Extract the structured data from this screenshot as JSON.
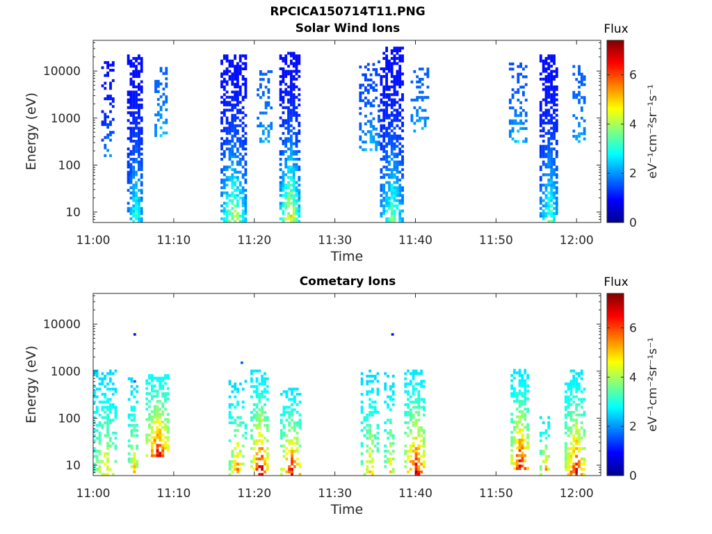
{
  "figure": {
    "title": "RPCICA150714T11.PNG"
  },
  "colorscale": [
    "#00008f",
    "#0000ff",
    "#0080ff",
    "#00ffff",
    "#80ff80",
    "#ffff00",
    "#ff8000",
    "#ff0000",
    "#800000"
  ],
  "chart_data": [
    {
      "type": "heatmap",
      "title": "Solar Wind Ions",
      "xlabel": "Time",
      "ylabel": "Energy (eV)",
      "x_ticks": [
        "11:00",
        "11:10",
        "11:20",
        "11:30",
        "11:40",
        "11:50",
        "12:00"
      ],
      "x_range_minutes": [
        0,
        63
      ],
      "y_scale": "log",
      "y_ticks": [
        "10",
        "100",
        "1000",
        "10000"
      ],
      "y_range": [
        6,
        45000
      ],
      "colorbar": {
        "label": "Flux",
        "unit": "eV⁻¹cm⁻²sr⁻¹s⁻¹",
        "range": [
          0,
          7.4
        ],
        "ticks": [
          "0",
          "2",
          "4",
          "6"
        ]
      },
      "bursts": [
        {
          "t0": 1.0,
          "t1": 2.6,
          "emin": 150,
          "emax": 15000,
          "density": 0.35,
          "vmax": 2.3,
          "vmin": 1.0
        },
        {
          "t0": 4.2,
          "t1": 6.1,
          "emin": 6,
          "emax": 20000,
          "density": 0.65,
          "vmax": 3.5,
          "vmin": 1.0
        },
        {
          "t0": 7.6,
          "t1": 9.2,
          "emin": 400,
          "emax": 13000,
          "density": 0.4,
          "vmax": 2.6,
          "vmin": 1.6
        },
        {
          "t0": 15.8,
          "t1": 18.8,
          "emin": 6,
          "emax": 22000,
          "density": 0.6,
          "vmax": 4.6,
          "vmin": 1.0
        },
        {
          "t0": 20.3,
          "t1": 22.2,
          "emin": 300,
          "emax": 10000,
          "density": 0.3,
          "vmax": 2.4,
          "vmin": 1.6
        },
        {
          "t0": 23.1,
          "t1": 25.5,
          "emin": 6,
          "emax": 23000,
          "density": 0.62,
          "vmax": 5.4,
          "vmin": 1.0
        },
        {
          "t0": 33.0,
          "t1": 35.6,
          "emin": 200,
          "emax": 16000,
          "density": 0.35,
          "vmax": 2.6,
          "vmin": 1.4
        },
        {
          "t0": 35.6,
          "t1": 38.3,
          "emin": 6,
          "emax": 30000,
          "density": 0.62,
          "vmax": 4.0,
          "vmin": 1.0
        },
        {
          "t0": 39.4,
          "t1": 41.4,
          "emin": 500,
          "emax": 11000,
          "density": 0.35,
          "vmax": 2.5,
          "vmin": 1.6
        },
        {
          "t0": 51.6,
          "t1": 53.6,
          "emin": 300,
          "emax": 15000,
          "density": 0.35,
          "vmax": 2.7,
          "vmin": 1.5
        },
        {
          "t0": 55.4,
          "t1": 57.6,
          "emin": 6,
          "emax": 22000,
          "density": 0.62,
          "vmax": 3.8,
          "vmin": 1.0
        },
        {
          "t0": 59.5,
          "t1": 61.0,
          "emin": 300,
          "emax": 12000,
          "density": 0.35,
          "vmax": 2.4,
          "vmin": 1.6
        }
      ]
    },
    {
      "type": "heatmap",
      "title": "Cometary Ions",
      "xlabel": "Time",
      "ylabel": "Energy (eV)",
      "x_ticks": [
        "11:00",
        "11:10",
        "11:20",
        "11:30",
        "11:40",
        "11:50",
        "12:00"
      ],
      "x_range_minutes": [
        0,
        63
      ],
      "y_scale": "log",
      "y_ticks": [
        "10",
        "100",
        "1000",
        "10000"
      ],
      "y_range": [
        6,
        45000
      ],
      "colorbar": {
        "label": "Flux",
        "unit": "eV⁻¹cm⁻²sr⁻¹s⁻¹",
        "range": [
          0,
          7.4
        ],
        "ticks": [
          "0",
          "2",
          "4",
          "6"
        ]
      },
      "bursts": [
        {
          "t0": 0.0,
          "t1": 2.8,
          "emin": 6,
          "emax": 1000,
          "density": 0.35,
          "vmax": 5.0,
          "vmin": 2.5
        },
        {
          "t0": 4.3,
          "t1": 5.5,
          "emin": 6,
          "emax": 700,
          "density": 0.3,
          "vmax": 5.5,
          "vmin": 2.5
        },
        {
          "t0": 6.5,
          "t1": 9.3,
          "emin": 15,
          "emax": 800,
          "density": 0.55,
          "vmax": 7.2,
          "vmin": 2.8
        },
        {
          "t0": 16.8,
          "t1": 18.8,
          "emin": 6,
          "emax": 600,
          "density": 0.35,
          "vmax": 6.0,
          "vmin": 2.5
        },
        {
          "t0": 19.5,
          "t1": 21.8,
          "emin": 6,
          "emax": 1000,
          "density": 0.5,
          "vmax": 7.4,
          "vmin": 2.6
        },
        {
          "t0": 23.2,
          "t1": 25.8,
          "emin": 6,
          "emax": 400,
          "density": 0.45,
          "vmax": 7.0,
          "vmin": 2.6
        },
        {
          "t0": 33.2,
          "t1": 35.4,
          "emin": 6,
          "emax": 1000,
          "density": 0.32,
          "vmax": 5.2,
          "vmin": 2.5
        },
        {
          "t0": 36.1,
          "t1": 37.4,
          "emin": 6,
          "emax": 900,
          "density": 0.3,
          "vmax": 5.0,
          "vmin": 2.5
        },
        {
          "t0": 38.6,
          "t1": 41.2,
          "emin": 6,
          "emax": 1000,
          "density": 0.5,
          "vmax": 7.2,
          "vmin": 2.6
        },
        {
          "t0": 51.8,
          "t1": 54.0,
          "emin": 8,
          "emax": 1000,
          "density": 0.55,
          "vmax": 7.4,
          "vmin": 2.6
        },
        {
          "t0": 55.4,
          "t1": 56.6,
          "emin": 6,
          "emax": 100,
          "density": 0.4,
          "vmax": 6.0,
          "vmin": 2.6
        },
        {
          "t0": 58.5,
          "t1": 61.0,
          "emin": 6,
          "emax": 1000,
          "density": 0.5,
          "vmax": 7.0,
          "vmin": 2.6
        }
      ],
      "isolated_points": [
        {
          "t": 5.0,
          "e": 6000,
          "v": 1.0
        },
        {
          "t": 37.0,
          "e": 6000,
          "v": 1.0
        },
        {
          "t": 18.3,
          "e": 1500,
          "v": 1.6
        },
        {
          "t": 5.0,
          "e": 600,
          "v": 1.6
        }
      ]
    }
  ]
}
